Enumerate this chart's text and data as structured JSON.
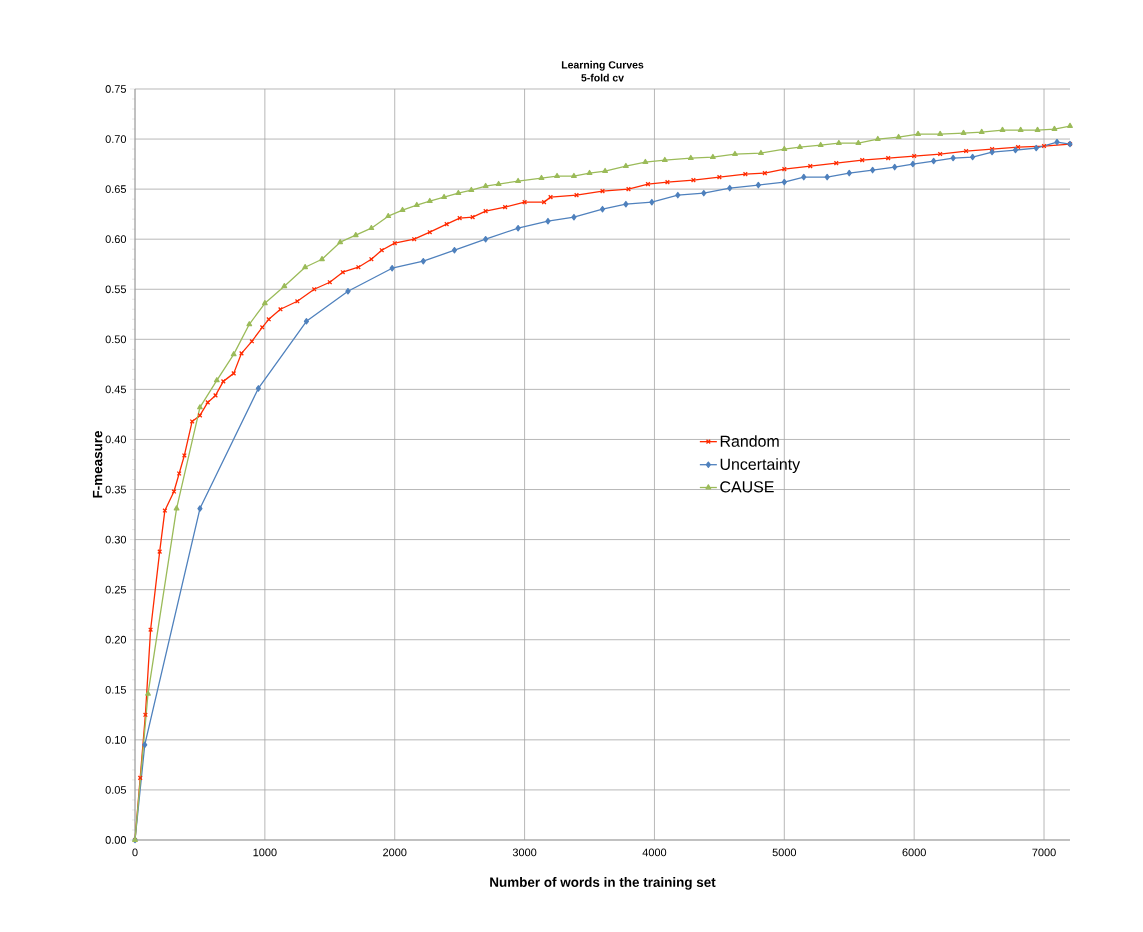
{
  "chart_data": {
    "type": "line",
    "title": "Learning Curves",
    "subtitle": "5-fold cv",
    "xlabel": "Number of words in the training set",
    "ylabel": "F-measure",
    "xlim": [
      0,
      7200
    ],
    "xticks": [
      0,
      1000,
      2000,
      3000,
      4000,
      5000,
      6000,
      7000
    ],
    "ylim": [
      0,
      0.75
    ],
    "yticks": [
      {
        "value": 0,
        "label": "0.00"
      },
      {
        "value": 0.05,
        "label": "0.05"
      },
      {
        "value": 0.1,
        "label": "0.10"
      },
      {
        "value": 0.15,
        "label": "0.15"
      },
      {
        "value": 0.2,
        "label": "0.20"
      },
      {
        "value": 0.25,
        "label": "0.25"
      },
      {
        "value": 0.3,
        "label": "0.30"
      },
      {
        "value": 0.35,
        "label": "0.35"
      },
      {
        "value": 0.4,
        "label": "0.40"
      },
      {
        "value": 0.45,
        "label": "0.45"
      },
      {
        "value": 0.5,
        "label": "0.50"
      },
      {
        "value": 0.55,
        "label": "0.55"
      },
      {
        "value": 0.6,
        "label": "0.60"
      },
      {
        "value": 0.65,
        "label": "0.65"
      },
      {
        "value": 0.7,
        "label": "0.70"
      },
      {
        "value": 0.75,
        "label": "0.75"
      }
    ],
    "grid": true,
    "legend": "center right",
    "series": [
      {
        "name": "Random",
        "color": "#ff2a00",
        "marker": "cross",
        "x": [
          0,
          40,
          80,
          120,
          190,
          230,
          300,
          340,
          380,
          440,
          500,
          560,
          620,
          680,
          760,
          820,
          900,
          980,
          1030,
          1120,
          1250,
          1380,
          1500,
          1600,
          1720,
          1820,
          1900,
          2000,
          2150,
          2270,
          2400,
          2500,
          2600,
          2700,
          2850,
          3000,
          3150,
          3200,
          3400,
          3600,
          3800,
          3950,
          4100,
          4300,
          4500,
          4700,
          4850,
          5000,
          5200,
          5400,
          5600,
          5800,
          6000,
          6200,
          6400,
          6600,
          6800,
          7000,
          7200
        ],
        "values": [
          0,
          0.062,
          0.125,
          0.21,
          0.288,
          0.329,
          0.348,
          0.366,
          0.384,
          0.418,
          0.424,
          0.437,
          0.444,
          0.458,
          0.466,
          0.486,
          0.498,
          0.512,
          0.52,
          0.53,
          0.538,
          0.55,
          0.557,
          0.567,
          0.572,
          0.58,
          0.589,
          0.596,
          0.6,
          0.607,
          0.615,
          0.621,
          0.622,
          0.628,
          0.632,
          0.637,
          0.637,
          0.642,
          0.644,
          0.648,
          0.65,
          0.655,
          0.657,
          0.659,
          0.662,
          0.665,
          0.666,
          0.67,
          0.673,
          0.676,
          0.679,
          0.681,
          0.683,
          0.685,
          0.688,
          0.69,
          0.692,
          0.693,
          0.695
        ]
      },
      {
        "name": "Uncertainty",
        "color": "#4f81bd",
        "marker": "diamond",
        "x": [
          0,
          75,
          500,
          950,
          1320,
          1640,
          1980,
          2220,
          2460,
          2700,
          2950,
          3180,
          3380,
          3600,
          3780,
          3980,
          4180,
          4380,
          4580,
          4800,
          5000,
          5150,
          5330,
          5500,
          5680,
          5850,
          5990,
          6150,
          6300,
          6450,
          6600,
          6780,
          6940,
          7100,
          7200
        ],
        "values": [
          0,
          0.095,
          0.331,
          0.451,
          0.518,
          0.548,
          0.571,
          0.578,
          0.589,
          0.6,
          0.611,
          0.618,
          0.622,
          0.63,
          0.635,
          0.637,
          0.644,
          0.646,
          0.651,
          0.654,
          0.657,
          0.662,
          0.662,
          0.666,
          0.669,
          0.672,
          0.675,
          0.678,
          0.681,
          0.682,
          0.687,
          0.689,
          0.691,
          0.697,
          0.695
        ]
      },
      {
        "name": "CAUSE",
        "color": "#9bbb59",
        "marker": "triangle",
        "x": [
          0,
          100,
          320,
          500,
          630,
          760,
          880,
          1000,
          1150,
          1310,
          1440,
          1580,
          1700,
          1820,
          1950,
          2060,
          2170,
          2270,
          2380,
          2490,
          2590,
          2700,
          2800,
          2950,
          3130,
          3250,
          3380,
          3500,
          3620,
          3780,
          3930,
          4080,
          4280,
          4450,
          4620,
          4820,
          5000,
          5120,
          5280,
          5420,
          5570,
          5720,
          5880,
          6030,
          6200,
          6380,
          6520,
          6680,
          6820,
          6950,
          7080,
          7200
        ],
        "values": [
          0,
          0.146,
          0.331,
          0.432,
          0.459,
          0.485,
          0.515,
          0.536,
          0.553,
          0.572,
          0.58,
          0.597,
          0.604,
          0.611,
          0.623,
          0.629,
          0.634,
          0.638,
          0.642,
          0.646,
          0.649,
          0.653,
          0.655,
          0.658,
          0.661,
          0.663,
          0.663,
          0.666,
          0.668,
          0.673,
          0.677,
          0.679,
          0.681,
          0.682,
          0.685,
          0.686,
          0.69,
          0.692,
          0.694,
          0.696,
          0.696,
          0.7,
          0.702,
          0.705,
          0.705,
          0.706,
          0.707,
          0.709,
          0.709,
          0.709,
          0.71,
          0.713
        ]
      }
    ]
  }
}
